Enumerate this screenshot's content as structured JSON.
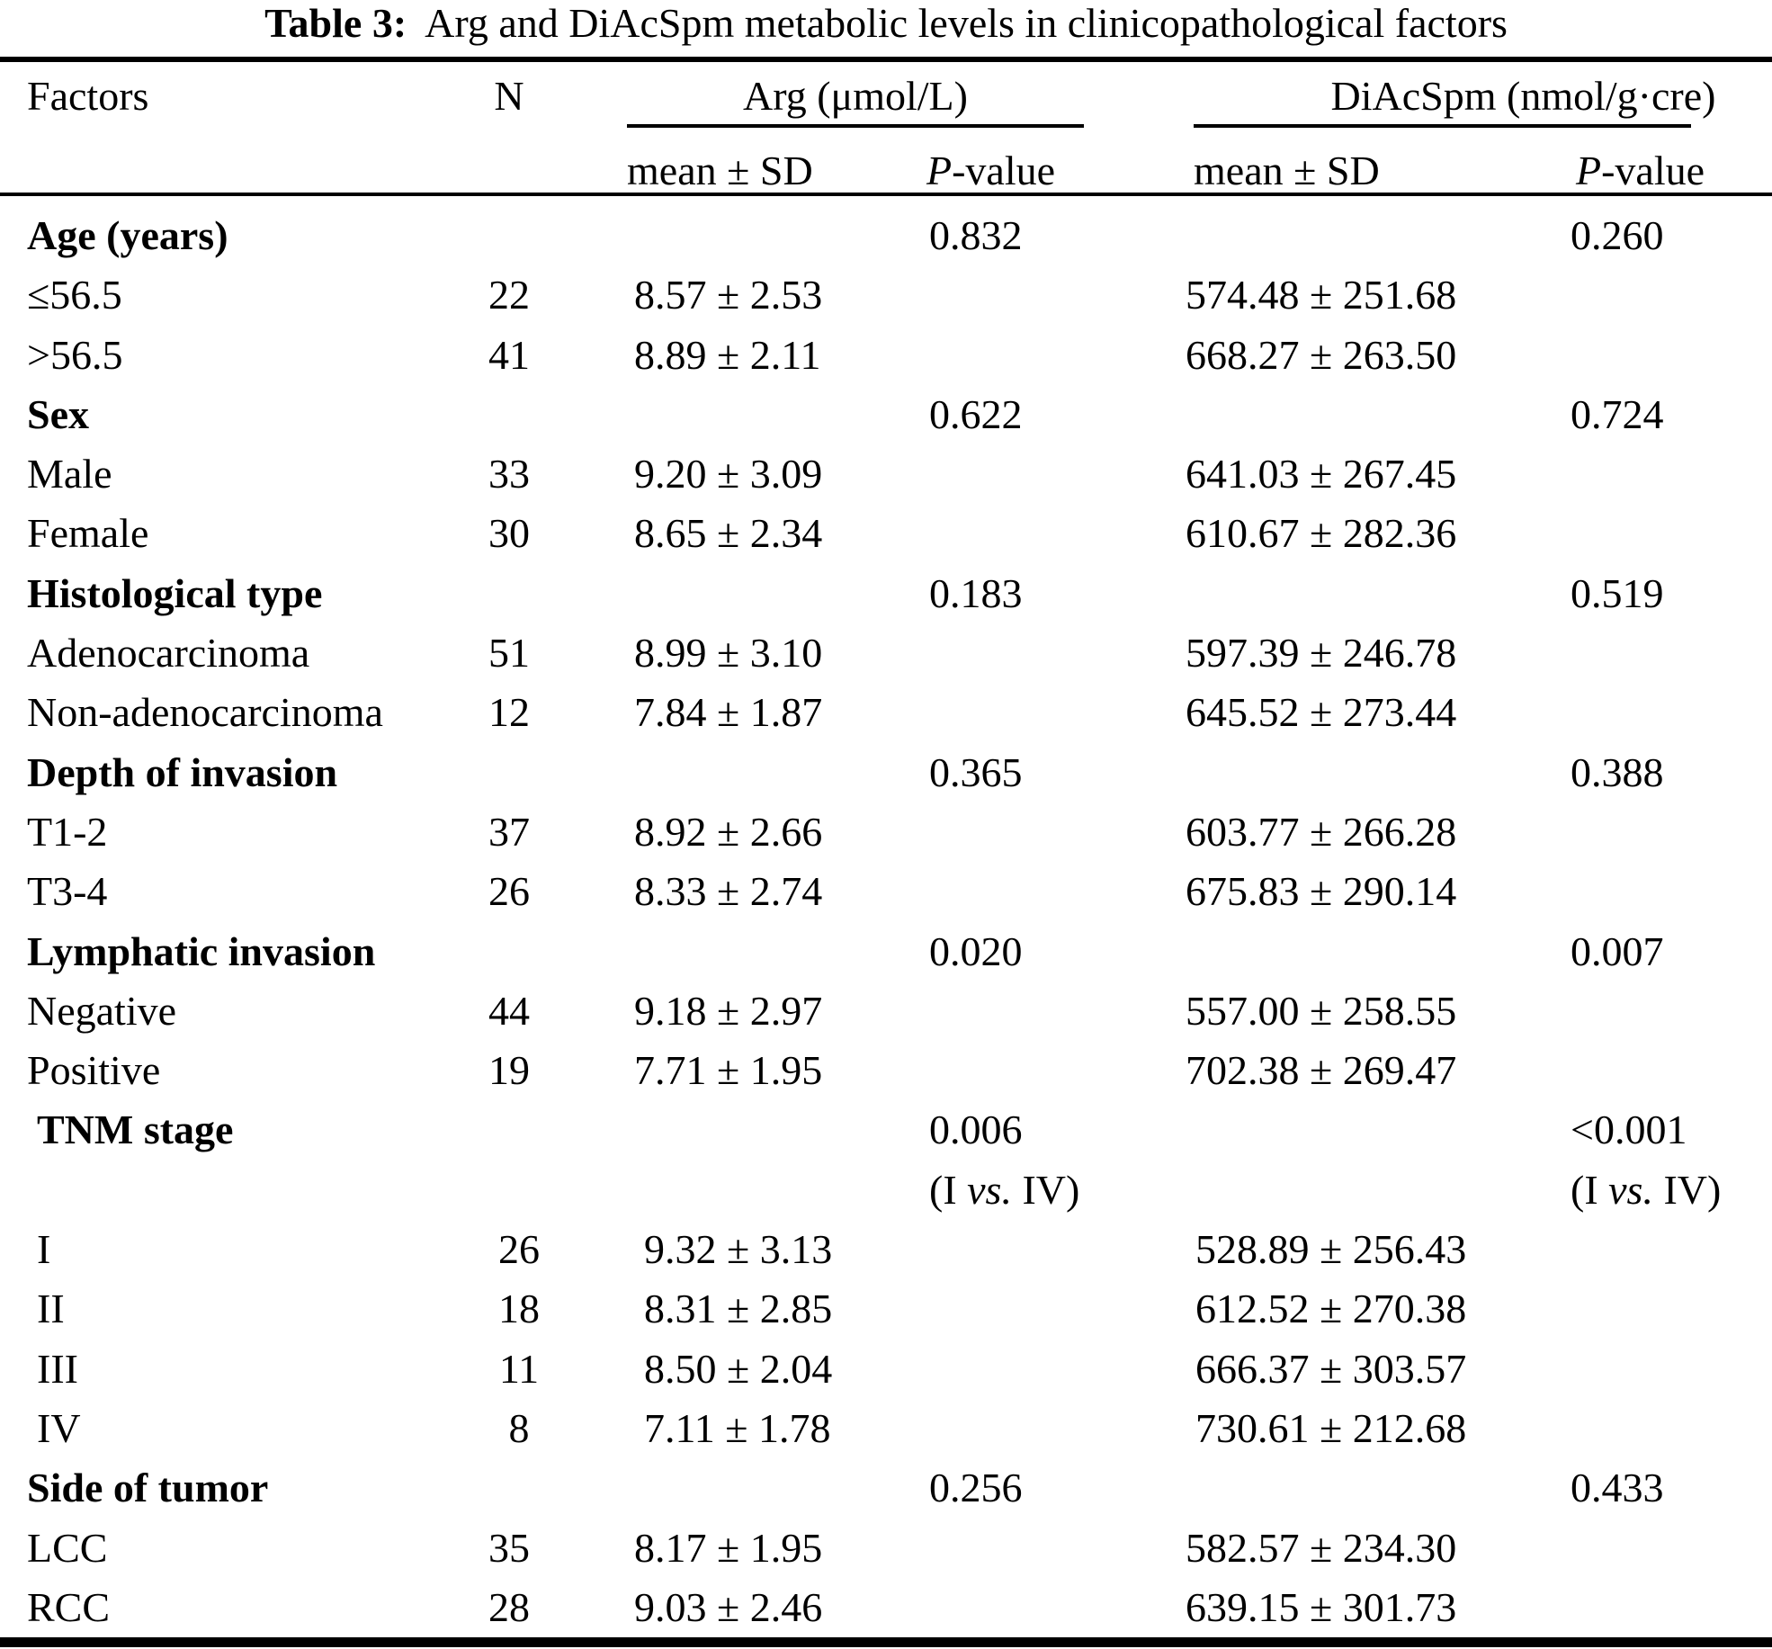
{
  "title": {
    "label": "Table 3:",
    "text": "Arg and DiAcSpm metabolic levels in clinicopathological factors"
  },
  "columns": {
    "factors": "Factors",
    "n": "N",
    "arg_group": "Arg (μmol/L)",
    "diacspm_group": "DiAcSpm (nmol/g·cre)",
    "mean_sd": "mean ± SD",
    "p_italic": "P",
    "p_rest": "-value"
  },
  "rows": [
    {
      "type": "group",
      "factor": "Age (years)",
      "arg_p": "0.832",
      "diac_p": "0.260"
    },
    {
      "type": "item",
      "factor": "≤56.5",
      "n": "22",
      "arg_mean": "8.57 ± 2.53",
      "diac_mean": "574.48 ± 251.68"
    },
    {
      "type": "item",
      "factor": ">56.5",
      "n": "41",
      "arg_mean": "8.89 ± 2.11",
      "diac_mean": "668.27 ± 263.50"
    },
    {
      "type": "group",
      "factor": "Sex",
      "arg_p": "0.622",
      "diac_p": "0.724"
    },
    {
      "type": "item",
      "factor": "Male",
      "n": "33",
      "arg_mean": "9.20 ± 3.09",
      "diac_mean": "641.03 ± 267.45"
    },
    {
      "type": "item",
      "factor": "Female",
      "n": "30",
      "arg_mean": "8.65 ± 2.34",
      "diac_mean": "610.67 ± 282.36"
    },
    {
      "type": "group",
      "factor": "Histological type",
      "arg_p": "0.183",
      "diac_p": "0.519"
    },
    {
      "type": "item",
      "factor": "Adenocarcinoma",
      "n": "51",
      "arg_mean": "8.99 ± 3.10",
      "diac_mean": "597.39 ± 246.78"
    },
    {
      "type": "item",
      "factor": "Non-adenocarcinoma",
      "n": "12",
      "arg_mean": "7.84 ± 1.87",
      "diac_mean": "645.52 ± 273.44"
    },
    {
      "type": "group",
      "factor": "Depth of invasion",
      "arg_p": "0.365",
      "diac_p": "0.388"
    },
    {
      "type": "item",
      "factor": "T1-2",
      "n": "37",
      "arg_mean": "8.92 ± 2.66",
      "diac_mean": "603.77 ± 266.28"
    },
    {
      "type": "item",
      "factor": "T3-4",
      "n": "26",
      "arg_mean": "8.33 ± 2.74",
      "diac_mean": "675.83 ± 290.14"
    },
    {
      "type": "group",
      "factor": "Lymphatic invasion",
      "arg_p": "0.020",
      "diac_p": "0.007"
    },
    {
      "type": "item",
      "factor": "Negative",
      "n": "44",
      "arg_mean": "9.18 ± 2.97",
      "diac_mean": "557.00 ± 258.55"
    },
    {
      "type": "item",
      "factor": "Positive",
      "n": "19",
      "arg_mean": "7.71 ± 1.95",
      "diac_mean": "702.38 ± 269.47"
    },
    {
      "type": "group",
      "factor": "TNM stage",
      "arg_p": "0.006",
      "diac_p": "<0.001",
      "indent": true
    },
    {
      "type": "note",
      "note_parts": [
        "(I ",
        "vs.",
        " IV)"
      ],
      "indent": true
    },
    {
      "type": "item",
      "factor": "I",
      "n": "26",
      "arg_mean": "9.32 ± 3.13",
      "diac_mean": "528.89 ± 256.43",
      "indent": true
    },
    {
      "type": "item",
      "factor": "II",
      "n": "18",
      "arg_mean": "8.31 ± 2.85",
      "diac_mean": "612.52 ± 270.38",
      "indent": true
    },
    {
      "type": "item",
      "factor": "III",
      "n": "11",
      "arg_mean": "8.50 ± 2.04",
      "diac_mean": "666.37 ± 303.57",
      "indent": true
    },
    {
      "type": "item",
      "factor": "IV",
      "n": "8",
      "arg_mean": "7.11 ± 1.78",
      "diac_mean": "730.61 ± 212.68",
      "indent": true
    },
    {
      "type": "group",
      "factor": "Side of tumor",
      "arg_p": "0.256",
      "diac_p": "0.433"
    },
    {
      "type": "item",
      "factor": "LCC",
      "n": "35",
      "arg_mean": "8.17 ± 1.95",
      "diac_mean": "582.57 ± 234.30"
    },
    {
      "type": "item",
      "factor": "RCC",
      "n": "28",
      "arg_mean": "9.03 ± 2.46",
      "diac_mean": "639.15 ± 301.73"
    }
  ]
}
